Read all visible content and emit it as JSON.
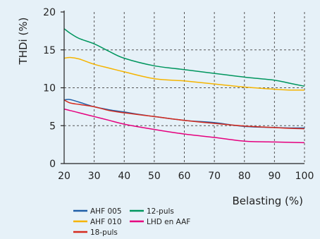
{
  "chart_data": {
    "type": "line",
    "title": "",
    "xlabel": "Belasting (%)",
    "ylabel": "THDi (%)",
    "xlim": [
      20,
      100
    ],
    "ylim": [
      0,
      20
    ],
    "x_ticks": [
      20,
      30,
      40,
      50,
      60,
      70,
      80,
      90,
      100
    ],
    "y_ticks": [
      0,
      5,
      10,
      15,
      20
    ],
    "grid": "dashed horizontal and vertical",
    "legend_position": "bottom",
    "x": [
      20,
      22,
      25,
      30,
      35,
      40,
      50,
      60,
      70,
      80,
      90,
      95,
      100
    ],
    "series": [
      {
        "name": "AHF 005",
        "color": "#1f5fa8",
        "values": [
          8.4,
          8.45,
          8.1,
          7.5,
          7.1,
          6.8,
          6.2,
          5.7,
          5.4,
          4.9,
          4.75,
          4.7,
          4.7
        ]
      },
      {
        "name": "AHF 010",
        "color": "#f5b400",
        "values": [
          13.9,
          14.0,
          13.8,
          13.1,
          12.6,
          12.1,
          11.2,
          10.9,
          10.5,
          10.1,
          9.8,
          9.7,
          9.7
        ]
      },
      {
        "name": "18-puls",
        "color": "#d52b1e",
        "values": [
          8.4,
          8.0,
          7.8,
          7.5,
          7.0,
          6.7,
          6.2,
          5.7,
          5.3,
          4.95,
          4.75,
          4.65,
          4.6
        ]
      },
      {
        "name": "12-puls",
        "color": "#00965e",
        "values": [
          17.8,
          17.2,
          16.5,
          15.8,
          14.8,
          13.9,
          12.9,
          12.4,
          11.9,
          11.4,
          11.0,
          10.6,
          10.2
        ]
      },
      {
        "name": "LHD en AAF",
        "color": "#e5007e",
        "values": [
          7.2,
          7.0,
          6.7,
          6.2,
          5.7,
          5.2,
          4.5,
          3.9,
          3.45,
          2.95,
          2.85,
          2.8,
          2.75
        ]
      }
    ]
  }
}
